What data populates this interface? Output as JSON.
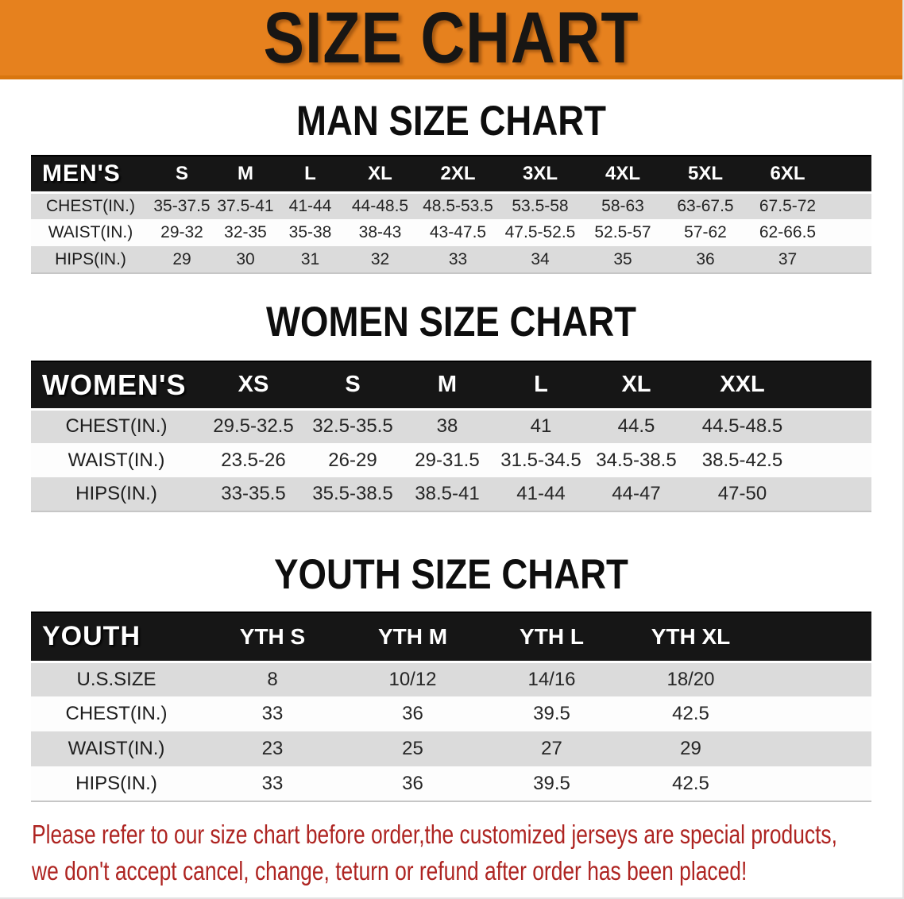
{
  "banner": {
    "title": "SIZE CHART"
  },
  "colors": {
    "banner_bg": "#E6811E",
    "banner_edge": "#D9760F",
    "header_bar": "#161616",
    "row_gray": "#DBDBDB",
    "disclaimer": "#AE2421"
  },
  "sections": [
    {
      "id": "men",
      "heading": "MAN SIZE CHART",
      "table": {
        "label": "MEN'S",
        "columns": [
          "S",
          "M",
          "L",
          "XL",
          "2XL",
          "3XL",
          "4XL",
          "5XL",
          "6XL"
        ],
        "rows": [
          {
            "label": "CHEST(IN.)",
            "values": [
              "35-37.5",
              "37.5-41",
              "41-44",
              "44-48.5",
              "48.5-53.5",
              "53.5-58",
              "58-63",
              "63-67.5",
              "67.5-72"
            ]
          },
          {
            "label": "WAIST(IN.)",
            "values": [
              "29-32",
              "32-35",
              "35-38",
              "38-43",
              "43-47.5",
              "47.5-52.5",
              "52.5-57",
              "57-62",
              "62-66.5"
            ]
          },
          {
            "label": "HIPS(IN.)",
            "values": [
              "29",
              "30",
              "31",
              "32",
              "33",
              "34",
              "35",
              "36",
              "37"
            ]
          }
        ]
      }
    },
    {
      "id": "women",
      "heading": "WOMEN SIZE CHART",
      "table": {
        "label": "WOMEN'S",
        "columns": [
          "XS",
          "S",
          "M",
          "L",
          "XL",
          "XXL"
        ],
        "rows": [
          {
            "label": "CHEST(IN.)",
            "values": [
              "29.5-32.5",
              "32.5-35.5",
              "38",
              "41",
              "44.5",
              "44.5-48.5"
            ]
          },
          {
            "label": "WAIST(IN.)",
            "values": [
              "23.5-26",
              "26-29",
              "29-31.5",
              "31.5-34.5",
              "34.5-38.5",
              "38.5-42.5"
            ]
          },
          {
            "label": "HIPS(IN.)",
            "values": [
              "33-35.5",
              "35.5-38.5",
              "38.5-41",
              "41-44",
              "44-47",
              "47-50"
            ]
          }
        ]
      }
    },
    {
      "id": "youth",
      "heading": "YOUTH SIZE CHART",
      "table": {
        "label": "YOUTH",
        "columns": [
          "YTH S",
          "YTH M",
          "YTH L",
          "YTH XL"
        ],
        "rows": [
          {
            "label": "U.S.SIZE",
            "values": [
              "8",
              "10/12",
              "14/16",
              "18/20"
            ]
          },
          {
            "label": "CHEST(IN.)",
            "values": [
              "33",
              "36",
              "39.5",
              "42.5"
            ]
          },
          {
            "label": "WAIST(IN.)",
            "values": [
              "23",
              "25",
              "27",
              "29"
            ]
          },
          {
            "label": "HIPS(IN.)",
            "values": [
              "33",
              "36",
              "39.5",
              "42.5"
            ]
          }
        ]
      }
    }
  ],
  "disclaimer": {
    "line1": "Please refer to our size chart before order,the customized jerseys are special products,",
    "line2": "we don't accept cancel, change, teturn or refund after order has been placed!"
  }
}
